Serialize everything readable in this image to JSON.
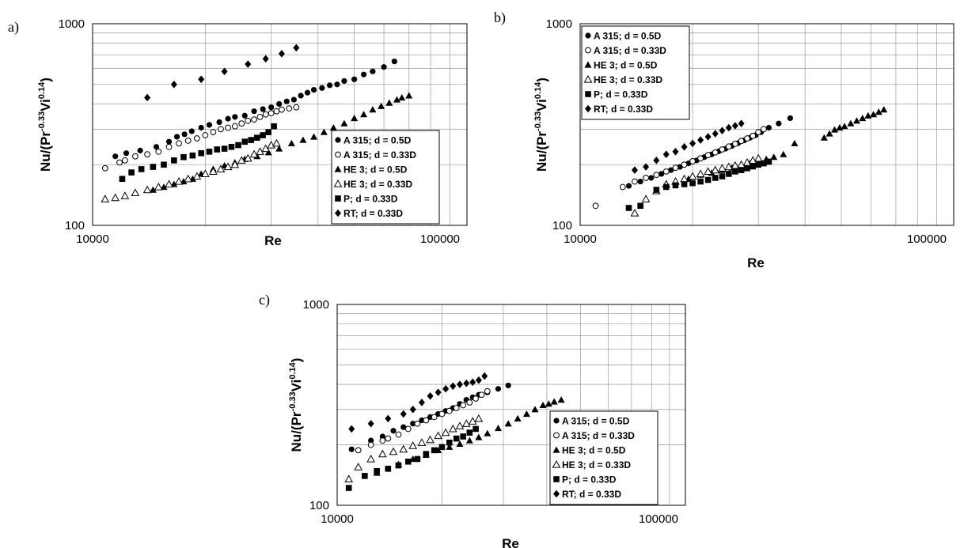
{
  "chart_data": [
    {
      "type": "scatter",
      "panel_label": "a)",
      "xlabel": "Re",
      "ylabel_parts": [
        "Nu/(Pr",
        "-0.33",
        "Vi",
        "0.14",
        ")"
      ],
      "xscale": "log",
      "yscale": "log",
      "xlim": [
        10000,
        100000
      ],
      "ylim": [
        100,
        1000
      ],
      "x_ticks": [
        "10000",
        "100000"
      ],
      "y_ticks": [
        "100",
        "1000"
      ],
      "grid": true,
      "legend_position": "bottom-right",
      "series": [
        {
          "name": "A 315; d = 0.5D",
          "marker": "filled-circle",
          "x": [
            11500,
            12300,
            13400,
            14800,
            16000,
            16800,
            17600,
            18400,
            19500,
            20500,
            21800,
            23000,
            24000,
            25500,
            27000,
            28500,
            30000,
            31500,
            33000,
            34500,
            36000,
            37500,
            39000,
            41000,
            43000,
            45000,
            47000,
            50000,
            53000,
            56000,
            60000,
            64000
          ],
          "y": [
            220,
            228,
            235,
            245,
            260,
            275,
            283,
            293,
            305,
            315,
            325,
            338,
            345,
            350,
            368,
            377,
            385,
            400,
            412,
            420,
            440,
            455,
            470,
            480,
            495,
            500,
            520,
            530,
            560,
            580,
            610,
            650
          ]
        },
        {
          "name": "A 315; d = 0.33D",
          "marker": "open-circle",
          "x": [
            10800,
            11800,
            12200,
            13000,
            14000,
            15000,
            16000,
            17000,
            18000,
            19000,
            20000,
            21000,
            22000,
            23000,
            24000,
            25000,
            26000,
            27000,
            28000,
            29000,
            30000,
            31000,
            32000,
            33500,
            35000
          ],
          "y": [
            192,
            205,
            210,
            220,
            225,
            232,
            245,
            255,
            263,
            270,
            280,
            290,
            300,
            305,
            310,
            320,
            330,
            335,
            345,
            355,
            360,
            368,
            375,
            380,
            385
          ]
        },
        {
          "name": "HE 3; d = 0.5D",
          "marker": "filled-triangle",
          "x": [
            14500,
            15500,
            16500,
            17500,
            18500,
            19500,
            21000,
            22500,
            24000,
            25500,
            27500,
            29500,
            31500,
            34000,
            36500,
            39000,
            41500,
            44000,
            47000,
            50000,
            53000,
            56000,
            59000,
            62000,
            65000,
            67000,
            70000
          ],
          "y": [
            150,
            155,
            160,
            165,
            170,
            180,
            190,
            198,
            205,
            213,
            220,
            230,
            240,
            255,
            265,
            275,
            290,
            305,
            320,
            340,
            355,
            375,
            390,
            405,
            420,
            430,
            440
          ]
        },
        {
          "name": "HE 3; d = 0.33D",
          "marker": "open-triangle",
          "x": [
            10800,
            11500,
            12200,
            13000,
            14000,
            15000,
            16000,
            17000,
            18000,
            19000,
            20000,
            21000,
            22000,
            23000,
            24000,
            25000,
            26000,
            27000,
            28000,
            29000,
            30000,
            31000
          ],
          "y": [
            135,
            137,
            140,
            145,
            150,
            155,
            160,
            165,
            170,
            175,
            180,
            185,
            190,
            195,
            200,
            210,
            215,
            225,
            232,
            240,
            250,
            255
          ]
        },
        {
          "name": "P; d = 0.33D",
          "marker": "filled-square",
          "x": [
            12000,
            12700,
            13500,
            14500,
            15500,
            16500,
            17500,
            18500,
            19500,
            20500,
            21500,
            22500,
            23500,
            24500,
            25500,
            26500,
            27500,
            28500,
            29500,
            30500
          ],
          "y": [
            170,
            183,
            190,
            195,
            200,
            210,
            218,
            222,
            228,
            232,
            238,
            240,
            245,
            250,
            260,
            265,
            272,
            280,
            290,
            310
          ]
        },
        {
          "name": "RT; d = 0.33D",
          "marker": "filled-diamond",
          "x": [
            14000,
            16500,
            19500,
            22500,
            26000,
            29000,
            32000,
            35000
          ],
          "y": [
            430,
            500,
            530,
            580,
            630,
            670,
            710,
            760
          ]
        }
      ]
    },
    {
      "type": "scatter",
      "panel_label": "b)",
      "xlabel": "Re",
      "ylabel_parts": [
        "Nu/(Pr",
        "-0.33",
        "Vi",
        "0.14",
        ")"
      ],
      "xscale": "log",
      "yscale": "log",
      "xlim": [
        10000,
        100000
      ],
      "ylim": [
        100,
        1000
      ],
      "x_ticks": [
        "10000",
        "100000"
      ],
      "y_ticks": [
        "100",
        "1000"
      ],
      "grid": true,
      "legend_position": "top-left",
      "series": [
        {
          "name": "A 315; d = 0.5D",
          "marker": "filled-circle",
          "x": [
            13500,
            14500,
            15500,
            16500,
            17500,
            18500,
            19500,
            20500,
            21500,
            22500,
            23500,
            24500,
            25500,
            26500,
            27500,
            28500,
            29500,
            30500,
            32000,
            34000,
            36500
          ],
          "y": [
            157,
            165,
            172,
            180,
            188,
            195,
            203,
            210,
            218,
            225,
            233,
            240,
            248,
            256,
            264,
            272,
            280,
            290,
            305,
            320,
            340
          ]
        },
        {
          "name": "A 315; d = 0.33D",
          "marker": "open-circle",
          "x": [
            11000,
            13000,
            14000,
            15000,
            16000,
            17000,
            18000,
            19000,
            20000,
            21000,
            22000,
            23000,
            24000,
            25000,
            26000,
            27000,
            28000,
            29000,
            30000,
            31000
          ],
          "y": [
            125,
            155,
            165,
            172,
            178,
            185,
            193,
            200,
            208,
            215,
            223,
            230,
            238,
            246,
            254,
            262,
            270,
            278,
            290,
            300
          ]
        },
        {
          "name": "HE 3; d = 0.5D",
          "marker": "filled-triangle",
          "x": [
            18000,
            19500,
            21000,
            22500,
            24000,
            25500,
            27000,
            28500,
            30000,
            31500,
            33000,
            35000,
            37500,
            45000,
            46500,
            48000,
            49500,
            51000,
            53000,
            55000,
            57000,
            59000,
            61000,
            63000,
            65000
          ],
          "y": [
            165,
            170,
            178,
            182,
            188,
            193,
            198,
            203,
            208,
            213,
            218,
            225,
            255,
            272,
            285,
            298,
            305,
            310,
            320,
            330,
            340,
            350,
            355,
            365,
            375
          ]
        },
        {
          "name": "HE 3; d = 0.33D",
          "marker": "open-triangle",
          "x": [
            14000,
            15000,
            16000,
            17000,
            18000,
            19000,
            20000,
            21000,
            22000,
            23000,
            24000,
            25000,
            26000,
            27000,
            28000,
            29000,
            30000
          ],
          "y": [
            115,
            135,
            148,
            160,
            165,
            170,
            175,
            180,
            185,
            188,
            192,
            195,
            198,
            200,
            205,
            210,
            215
          ]
        },
        {
          "name": "P; d = 0.33D",
          "marker": "filled-square",
          "x": [
            13500,
            14500,
            16000,
            17000,
            18000,
            19000,
            20000,
            21000,
            22000,
            23000,
            24000,
            25000,
            26000,
            27000,
            28000,
            29000,
            30000,
            31000,
            32000
          ],
          "y": [
            122,
            125,
            150,
            155,
            158,
            160,
            162,
            165,
            168,
            172,
            175,
            180,
            185,
            188,
            192,
            196,
            200,
            203,
            207
          ]
        },
        {
          "name": "RT; d = 0.33D",
          "marker": "filled-diamond",
          "x": [
            14000,
            15000,
            16000,
            17000,
            18000,
            19000,
            20000,
            21000,
            22000,
            23000,
            24000,
            25000,
            26000,
            27000
          ],
          "y": [
            188,
            195,
            210,
            225,
            232,
            245,
            255,
            265,
            275,
            285,
            295,
            305,
            312,
            320
          ]
        }
      ]
    },
    {
      "type": "scatter",
      "panel_label": "c)",
      "xlabel": "Re",
      "ylabel_parts": [
        "Nu/(Pr",
        "-0.33",
        "Vi",
        "0.14",
        ")"
      ],
      "xscale": "log",
      "yscale": "log",
      "xlim": [
        10000,
        100000
      ],
      "ylim": [
        100,
        1000
      ],
      "x_ticks": [
        "10000",
        "100000"
      ],
      "y_ticks": [
        "100",
        "1000"
      ],
      "grid": true,
      "legend_position": "bottom-right",
      "series": [
        {
          "name": "A 315; d = 0.5D",
          "marker": "filled-circle",
          "x": [
            11000,
            12500,
            13500,
            14500,
            15500,
            16500,
            17500,
            18500,
            19500,
            20500,
            21500,
            22500,
            23500,
            24500,
            25500,
            27000,
            29000,
            31000
          ],
          "y": [
            190,
            210,
            220,
            235,
            245,
            255,
            265,
            275,
            285,
            295,
            305,
            320,
            335,
            345,
            355,
            365,
            380,
            395
          ]
        },
        {
          "name": "A 315; d = 0.33D",
          "marker": "open-circle",
          "x": [
            11500,
            12500,
            13500,
            14000,
            15000,
            16000,
            17000,
            18000,
            19000,
            20000,
            21000,
            22000,
            23000,
            24000,
            25000,
            26000,
            27000
          ],
          "y": [
            188,
            200,
            210,
            215,
            225,
            240,
            255,
            265,
            275,
            285,
            295,
            305,
            315,
            325,
            340,
            355,
            370
          ]
        },
        {
          "name": "HE 3; d = 0.5D",
          "marker": "filled-triangle",
          "x": [
            13000,
            15000,
            16500,
            18000,
            19500,
            21000,
            22500,
            24000,
            25500,
            27000,
            29000,
            31000,
            33000,
            35000,
            37000,
            39000,
            40500,
            42000,
            44000
          ],
          "y": [
            145,
            160,
            170,
            178,
            188,
            195,
            202,
            210,
            218,
            228,
            242,
            255,
            270,
            285,
            300,
            315,
            320,
            328,
            335
          ]
        },
        {
          "name": "HE 3; d = 0.33D",
          "marker": "open-triangle",
          "x": [
            10800,
            11500,
            12500,
            13500,
            14500,
            15500,
            16500,
            17500,
            18500,
            19500,
            20500,
            21500,
            22500,
            23500,
            24500,
            25500
          ],
          "y": [
            135,
            155,
            170,
            180,
            185,
            190,
            198,
            205,
            212,
            222,
            230,
            240,
            248,
            255,
            262,
            270
          ]
        },
        {
          "name": "P; d = 0.33D",
          "marker": "filled-square",
          "x": [
            10800,
            12000,
            13000,
            14000,
            15000,
            16000,
            17000,
            18000,
            19000,
            20000,
            21000,
            22000,
            23000,
            24000,
            25000
          ],
          "y": [
            122,
            140,
            148,
            152,
            158,
            165,
            170,
            180,
            188,
            195,
            205,
            215,
            220,
            230,
            240
          ]
        },
        {
          "name": "RT; d = 0.33D",
          "marker": "filled-diamond",
          "x": [
            11000,
            12500,
            14000,
            15500,
            16500,
            17500,
            18500,
            19500,
            20500,
            21500,
            22500,
            23500,
            24500,
            25500,
            26500
          ],
          "y": [
            240,
            255,
            270,
            285,
            300,
            325,
            350,
            365,
            380,
            392,
            400,
            405,
            410,
            420,
            440
          ]
        }
      ]
    }
  ]
}
